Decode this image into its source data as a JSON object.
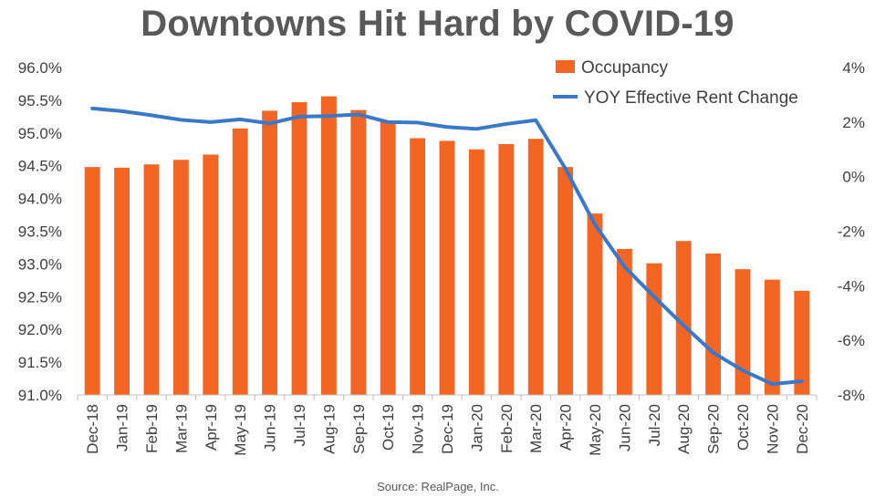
{
  "chart_data": {
    "type": "bar+line",
    "title": "Downtowns Hit Hard by COVID-19",
    "source": "Source: RealPage, Inc.",
    "categories": [
      "Dec-18",
      "Jan-19",
      "Feb-19",
      "Mar-19",
      "Apr-19",
      "May-19",
      "Jun-19",
      "Jul-19",
      "Aug-19",
      "Sep-19",
      "Oct-19",
      "Nov-19",
      "Dec-19",
      "Jan-20",
      "Feb-20",
      "Mar-20",
      "Apr-20",
      "May-20",
      "Jun-20",
      "Jul-20",
      "Aug-20",
      "Sep-20",
      "Oct-20",
      "Nov-20",
      "Dec-20"
    ],
    "series": [
      {
        "name": "Occupancy",
        "type": "bar",
        "axis": "left",
        "color": "#F26522",
        "values": [
          94.48,
          94.47,
          94.52,
          94.59,
          94.67,
          95.07,
          95.34,
          95.47,
          95.56,
          95.35,
          95.18,
          94.92,
          94.88,
          94.75,
          94.83,
          94.91,
          94.48,
          93.77,
          93.23,
          93.01,
          93.35,
          93.16,
          92.92,
          92.76,
          92.59
        ]
      },
      {
        "name": "YOY Effective Rent Change",
        "type": "line",
        "axis": "right",
        "color": "#3A78C9",
        "values": [
          2.5,
          2.4,
          2.25,
          2.08,
          2.0,
          2.1,
          1.95,
          2.2,
          2.22,
          2.28,
          2.0,
          1.98,
          1.82,
          1.75,
          1.93,
          2.07,
          0.3,
          -1.75,
          -3.3,
          -4.4,
          -5.45,
          -6.45,
          -7.1,
          -7.6,
          -7.5
        ]
      }
    ],
    "y_left": {
      "ylim": [
        91.0,
        96.0
      ],
      "ticks": [
        "91.0%",
        "91.5%",
        "92.0%",
        "92.5%",
        "93.0%",
        "93.5%",
        "94.0%",
        "94.5%",
        "95.0%",
        "95.5%",
        "96.0%"
      ]
    },
    "y_right": {
      "ylim": [
        -8,
        4
      ],
      "ticks": [
        "-8%",
        "-6%",
        "-4%",
        "-2%",
        "0%",
        "2%",
        "4%"
      ]
    },
    "legend_position": "top-right",
    "grid": false
  }
}
